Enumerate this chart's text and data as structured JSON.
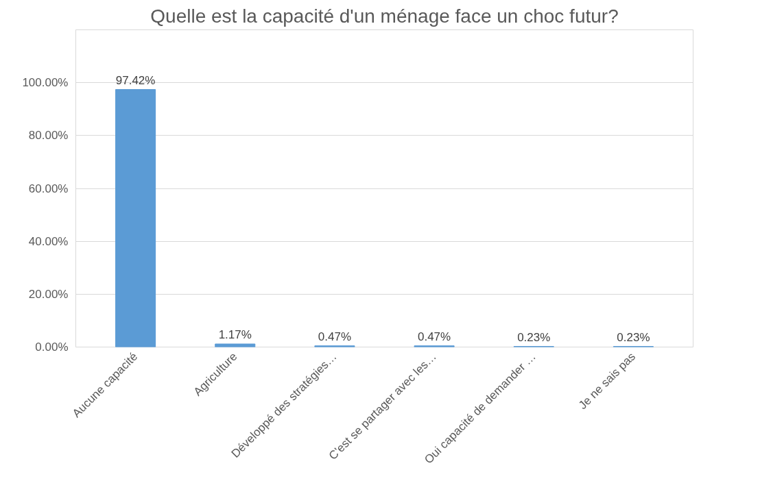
{
  "chart_data": {
    "type": "bar",
    "title": "Quelle est la capacité d'un ménage face un choc futur?",
    "categories": [
      "Aucune capacité",
      "Agriculture",
      "Développé des stratégies…",
      "C'est se partager avec les…",
      "Oui capacité de demander …",
      "Je ne sais pas"
    ],
    "values": [
      97.42,
      1.17,
      0.47,
      0.47,
      0.23,
      0.23
    ],
    "value_labels": [
      "97.42%",
      "1.17%",
      "0.47%",
      "0.47%",
      "0.23%",
      "0.23%"
    ],
    "color": "#5b9bd5",
    "ylim": [
      0,
      120
    ],
    "yticks": [
      {
        "value": 0,
        "label": "0.00%"
      },
      {
        "value": 20,
        "label": "20.00%"
      },
      {
        "value": 40,
        "label": "40.00%"
      },
      {
        "value": 60,
        "label": "60.00%"
      },
      {
        "value": 80,
        "label": "80.00%"
      },
      {
        "value": 100,
        "label": "100.00%"
      },
      {
        "value": 120,
        "label": null
      }
    ],
    "grid": "y"
  }
}
